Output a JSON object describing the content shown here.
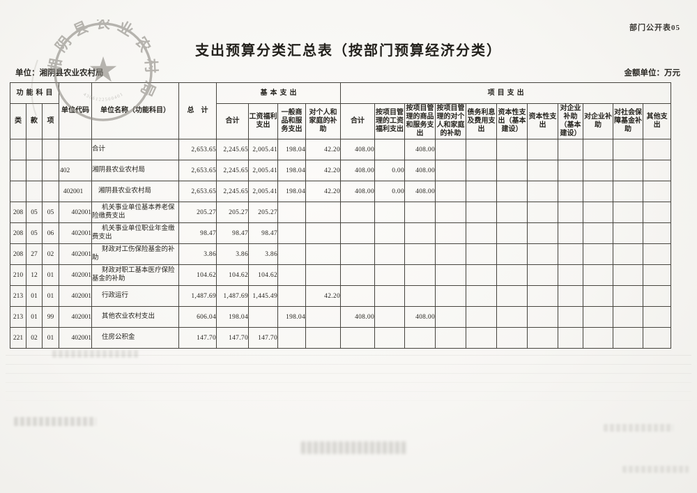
{
  "page": {
    "doc_code": "部门公开表05",
    "title": "支出预算分类汇总表（按部门预算经济分类）",
    "unit_label": "单位：湘阴县农业农村局",
    "amount_unit_label": "金额单位：万元",
    "paper_color": "#f6f5f2",
    "ink_color": "#26241f",
    "border_color": "#45433d"
  },
  "seal": {
    "org_text": "湘阴县农业农村局",
    "code_text": "4306122500401",
    "star_glyph": "★",
    "color": "#8e8b84"
  },
  "table": {
    "group_headers": {
      "function_subject": "功能科目",
      "unit_code": "单位代码",
      "unit_name": "单位名称（功能科目）",
      "total": "总　计",
      "basic": "基本支出",
      "project": "项目支出"
    },
    "sub_headers": {
      "cls": "类",
      "section": "款",
      "item": "项",
      "basic_cols": [
        "合计",
        "工资福利支出",
        "一般商品和服务支出",
        "对个人和家庭的补助"
      ],
      "project_cols": [
        "合计",
        "按项目管理的工资福利支出",
        "按项目管理的商品和服务支出",
        "按项目管理的对个人和家庭的补助",
        "债务利息及费用支出",
        "资本性支出（基本建设）",
        "资本性支出",
        "对企业补助（基本建设）",
        "对企业补助",
        "对社会保障基金补助",
        "其他支出"
      ]
    },
    "rows": [
      {
        "cls": "",
        "sec": "",
        "item": "",
        "code": "",
        "name": "合计",
        "total": "2,653.65",
        "basic": [
          "2,245.65",
          "2,005.41",
          "198.04",
          "42.20"
        ],
        "project": [
          "408.00",
          "",
          "408.00",
          "",
          "",
          "",
          "",
          "",
          "",
          "",
          ""
        ]
      },
      {
        "cls": "",
        "sec": "",
        "item": "",
        "code": "402",
        "name": "湘阴县农业农村局",
        "total": "2,653.65",
        "basic": [
          "2,245.65",
          "2,005.41",
          "198.04",
          "42.20"
        ],
        "project": [
          "408.00",
          "0.00",
          "408.00",
          "",
          "",
          "",
          "",
          "",
          "",
          "",
          ""
        ]
      },
      {
        "cls": "",
        "sec": "",
        "item": "",
        "code": "402001",
        "name": "湘阴县农业农村局",
        "total": "2,653.65",
        "basic": [
          "2,245.65",
          "2,005.41",
          "198.04",
          "42.20"
        ],
        "project": [
          "408.00",
          "0.00",
          "408.00",
          "",
          "",
          "",
          "",
          "",
          "",
          "",
          ""
        ]
      },
      {
        "cls": "208",
        "sec": "05",
        "item": "05",
        "code": "402001",
        "name": "机关事业单位基本养老保险缴费支出",
        "total": "205.27",
        "basic": [
          "205.27",
          "205.27",
          "",
          ""
        ],
        "project": [
          "",
          "",
          "",
          "",
          "",
          "",
          "",
          "",
          "",
          "",
          ""
        ]
      },
      {
        "cls": "208",
        "sec": "05",
        "item": "06",
        "code": "402001",
        "name": "机关事业单位职业年金缴费支出",
        "total": "98.47",
        "basic": [
          "98.47",
          "98.47",
          "",
          ""
        ],
        "project": [
          "",
          "",
          "",
          "",
          "",
          "",
          "",
          "",
          "",
          "",
          ""
        ]
      },
      {
        "cls": "208",
        "sec": "27",
        "item": "02",
        "code": "402001",
        "name": "财政对工伤保险基金的补助",
        "total": "3.86",
        "basic": [
          "3.86",
          "3.86",
          "",
          ""
        ],
        "project": [
          "",
          "",
          "",
          "",
          "",
          "",
          "",
          "",
          "",
          "",
          ""
        ]
      },
      {
        "cls": "210",
        "sec": "12",
        "item": "01",
        "code": "402001",
        "name": "财政对职工基本医疗保险基金的补助",
        "total": "104.62",
        "basic": [
          "104.62",
          "104.62",
          "",
          ""
        ],
        "project": [
          "",
          "",
          "",
          "",
          "",
          "",
          "",
          "",
          "",
          "",
          ""
        ]
      },
      {
        "cls": "213",
        "sec": "01",
        "item": "01",
        "code": "402001",
        "name": "行政运行",
        "total": "1,487.69",
        "basic": [
          "1,487.69",
          "1,445.49",
          "",
          "42.20"
        ],
        "project": [
          "",
          "",
          "",
          "",
          "",
          "",
          "",
          "",
          "",
          "",
          ""
        ]
      },
      {
        "cls": "213",
        "sec": "01",
        "item": "99",
        "code": "402001",
        "name": "其他农业农村支出",
        "total": "606.04",
        "basic": [
          "198.04",
          "",
          "198.04",
          ""
        ],
        "project": [
          "408.00",
          "",
          "408.00",
          "",
          "",
          "",
          "",
          "",
          "",
          "",
          ""
        ]
      },
      {
        "cls": "221",
        "sec": "02",
        "item": "01",
        "code": "402001",
        "name": "住房公积金",
        "total": "147.70",
        "basic": [
          "147.70",
          "147.70",
          "",
          ""
        ],
        "project": [
          "",
          "",
          "",
          "",
          "",
          "",
          "",
          "",
          "",
          "",
          ""
        ]
      }
    ]
  }
}
